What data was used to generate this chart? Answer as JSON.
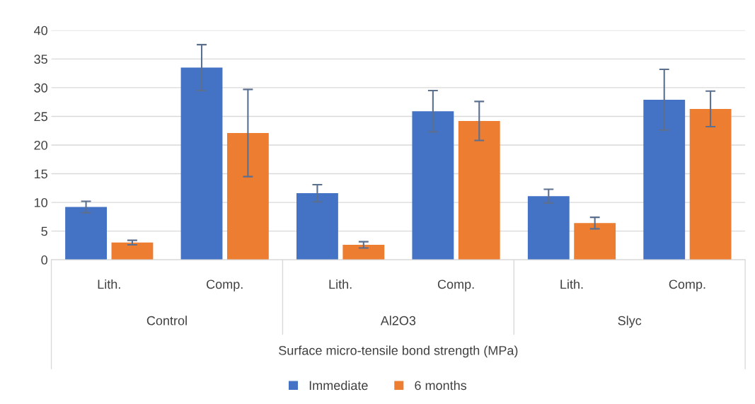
{
  "chart_data": {
    "type": "bar",
    "categories": [
      "Lith.",
      "Comp.",
      "Lith.",
      "Comp.",
      "Lith.",
      "Comp."
    ],
    "annotations": [
      "Control",
      "Al2O3",
      "Slyc"
    ],
    "xlabel": "Surface micro-tensile bond strength (MPa)",
    "series": [
      {
        "name": "Immediate",
        "color": "#4472c4",
        "values": [
          9.2,
          33.5,
          11.6,
          25.9,
          11.1,
          27.9
        ],
        "errors": [
          1.0,
          4.0,
          1.5,
          3.6,
          1.2,
          5.3
        ]
      },
      {
        "name": "6 months",
        "color": "#ed7d31",
        "values": [
          3.0,
          22.1,
          2.6,
          24.2,
          6.4,
          26.3
        ],
        "errors": [
          0.4,
          7.6,
          0.55,
          3.4,
          1.0,
          3.1
        ]
      }
    ],
    "ylim": [
      0,
      40
    ],
    "yticks": [
      0,
      5,
      10,
      15,
      20,
      25,
      30,
      35,
      40
    ],
    "grid": "y",
    "legend": "bottom"
  }
}
